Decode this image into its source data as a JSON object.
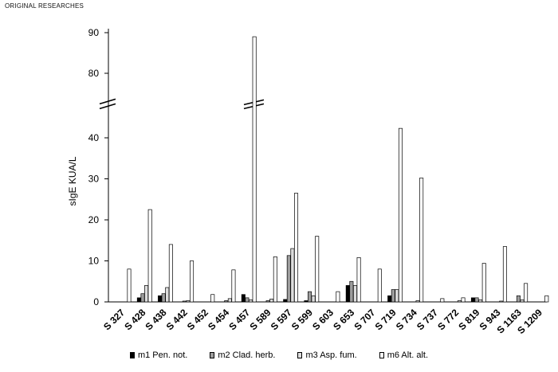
{
  "header": "ORIGINAL RESEARCHES",
  "chart_data": {
    "type": "bar",
    "ylabel": "sIgE KUA/L",
    "ylim": [
      0,
      92
    ],
    "y_break": [
      45,
      75
    ],
    "yticks": [
      0,
      10,
      20,
      30,
      40,
      80,
      90
    ],
    "categories": [
      "S 327",
      "S 428",
      "S 438",
      "S 442",
      "S 452",
      "S 454",
      "S 457",
      "S 589",
      "S 597",
      "S 599",
      "S 603",
      "S 653",
      "S 707",
      "S 719",
      "S 734",
      "S 737",
      "S 772",
      "S 819",
      "S 943",
      "S 1163",
      "S 1209"
    ],
    "series": [
      {
        "name": "m1 Pen. not.",
        "color": "#000000",
        "values": [
          0,
          1,
          1.5,
          0,
          0,
          0,
          1.8,
          0,
          0.6,
          0.3,
          0,
          4,
          0,
          1.5,
          0,
          0,
          0,
          1,
          0,
          0,
          0
        ]
      },
      {
        "name": "m2 Clad. herb.",
        "color": "#9e9e9e",
        "values": [
          0,
          2,
          2,
          0.2,
          0,
          0.3,
          1,
          0.3,
          11.3,
          2.5,
          0,
          5,
          0,
          3,
          0,
          0,
          0,
          1,
          0,
          1.5,
          0
        ]
      },
      {
        "name": "m3 Asp. fum.",
        "color": "#dddddd",
        "values": [
          0,
          4,
          3.5,
          0.3,
          0,
          0.8,
          0.5,
          0.7,
          13,
          1.5,
          0,
          4,
          0,
          3,
          0.3,
          0,
          0.3,
          0.5,
          0.2,
          0.5,
          0
        ]
      },
      {
        "name": "m6 Alt. alt.",
        "color": "#ffffff",
        "values": [
          8,
          22.5,
          14,
          10,
          1.8,
          7.8,
          89,
          11,
          26.5,
          16,
          2.5,
          10.8,
          8,
          42.3,
          30.2,
          0.8,
          1,
          9.4,
          13.5,
          4.5,
          1.5
        ]
      }
    ],
    "legend_position": "bottom",
    "grid": false
  }
}
